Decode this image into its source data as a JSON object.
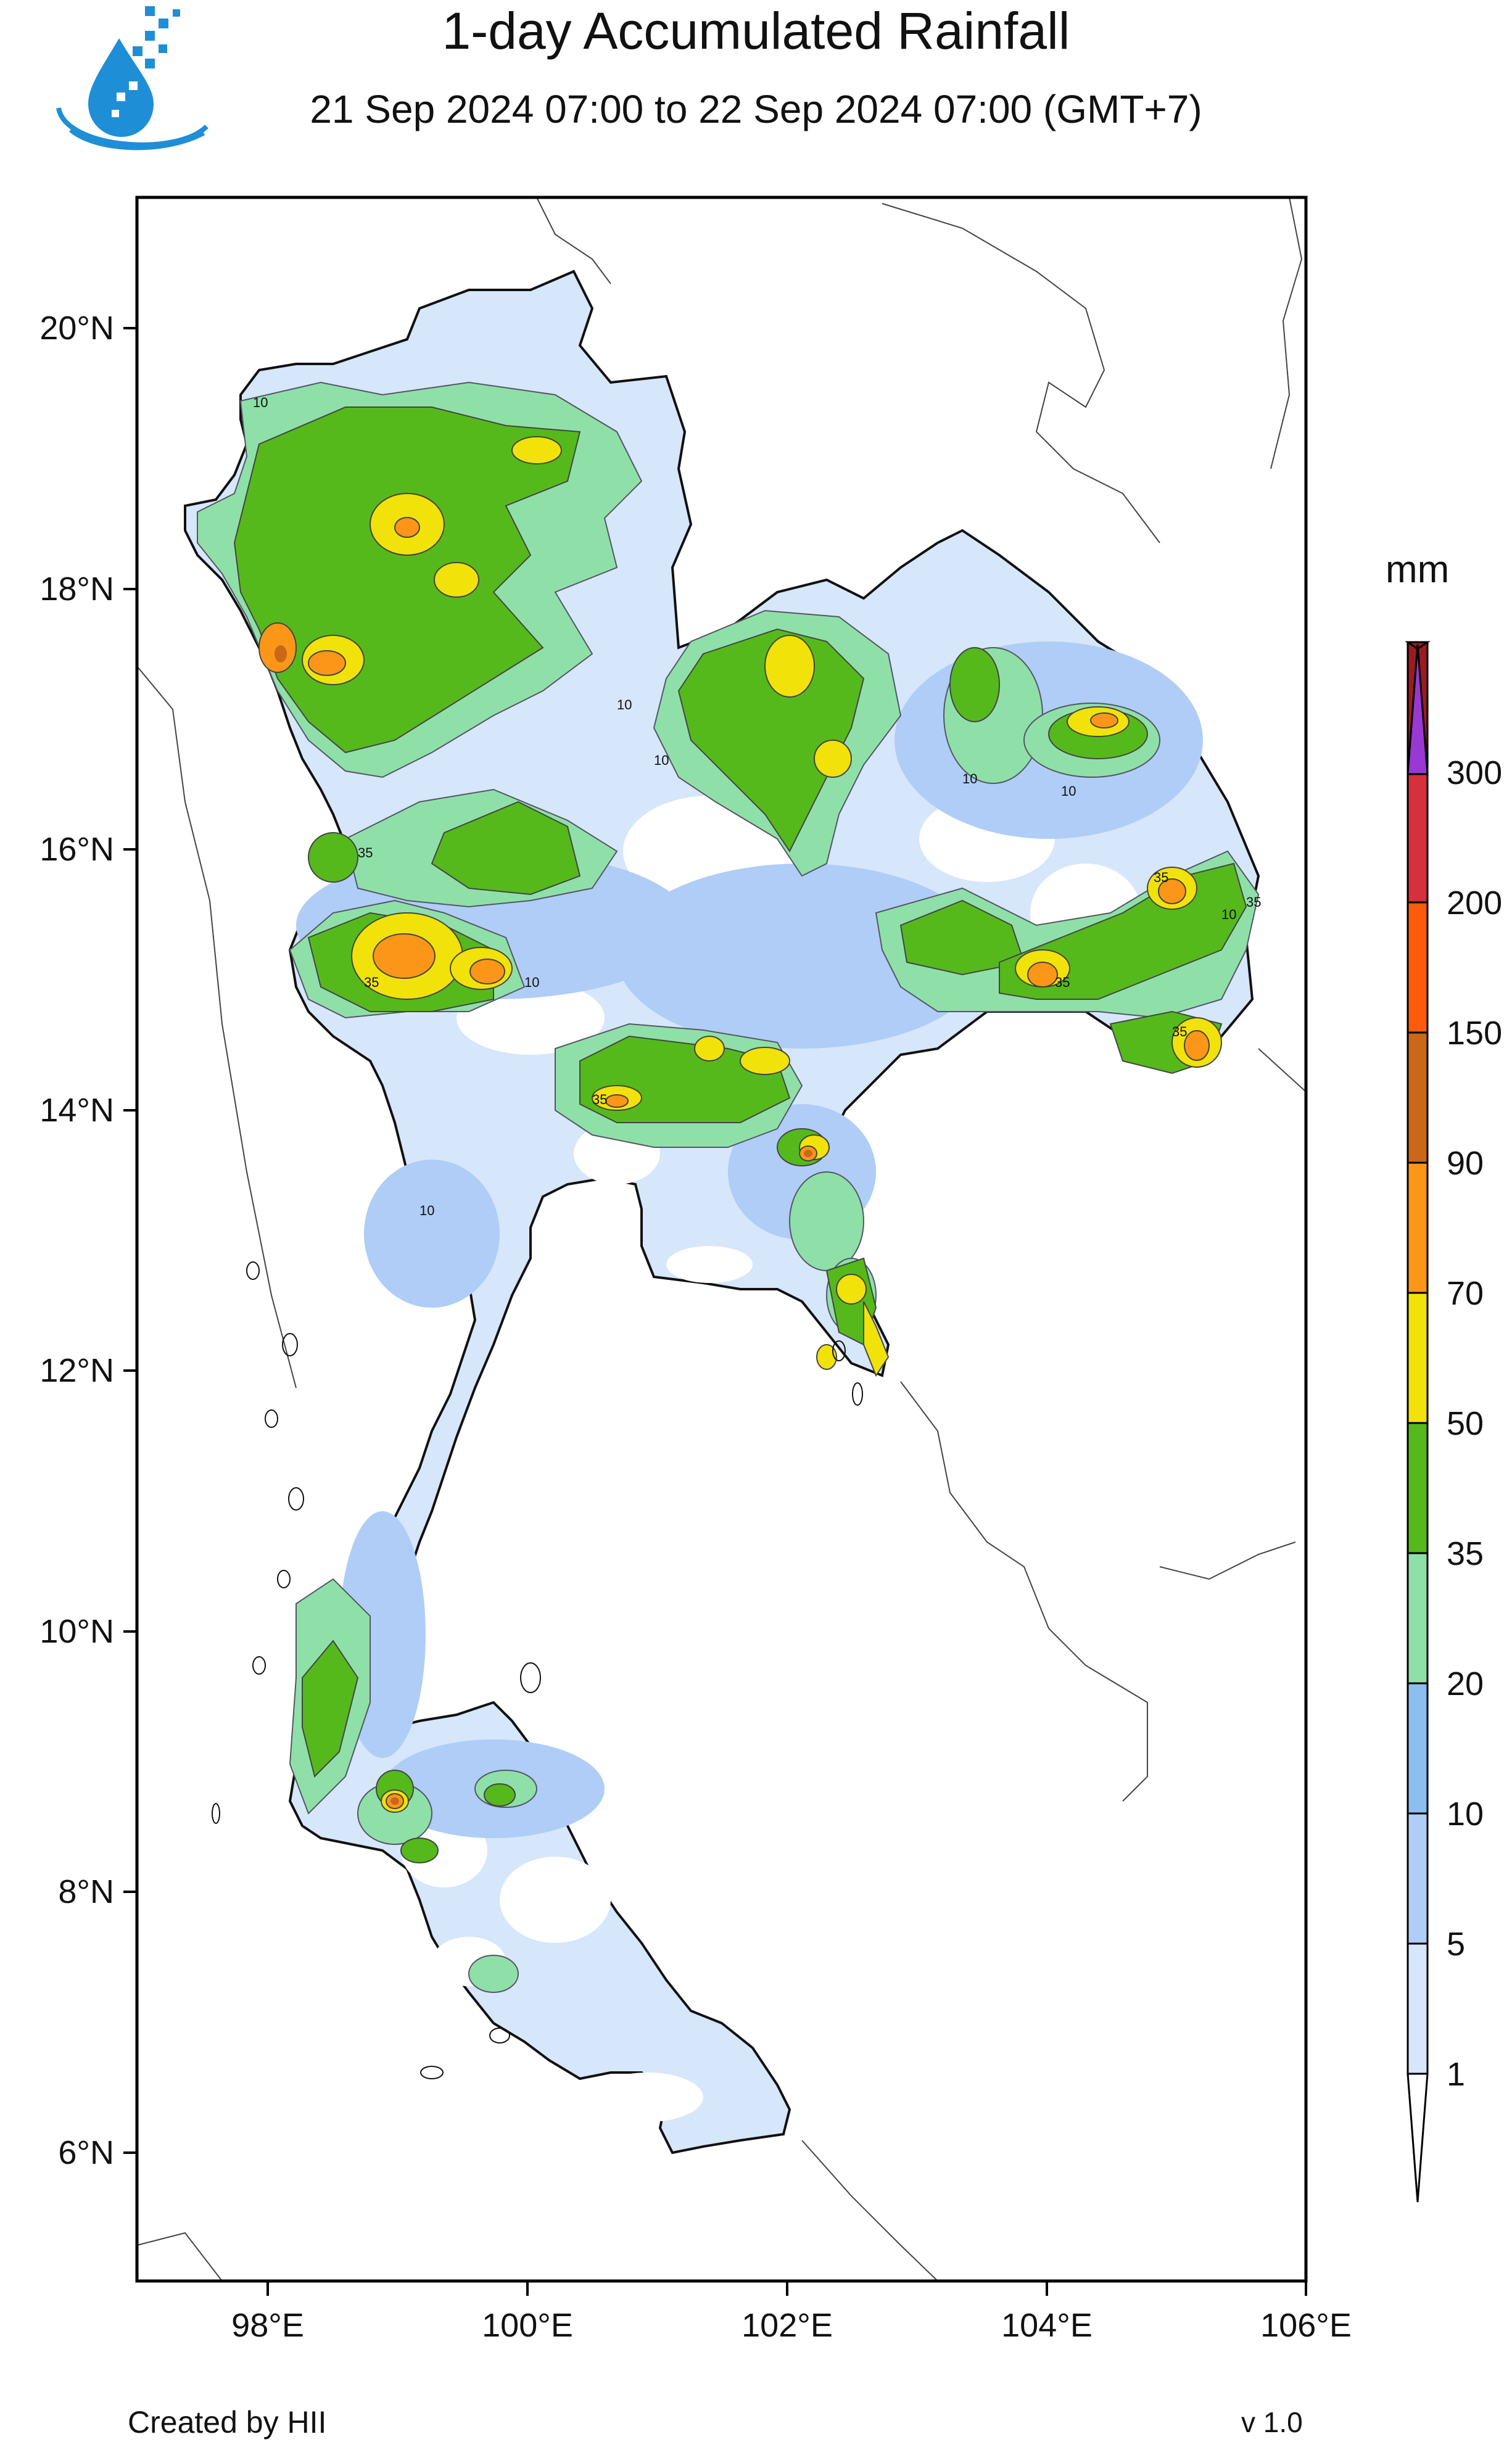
{
  "header": {
    "title": "1-day Accumulated Rainfall",
    "subtitle": "21 Sep 2024 07:00 to 22 Sep 2024 07:00 (GMT+7)"
  },
  "map": {
    "lat_labels": [
      "20°N",
      "18°N",
      "16°N",
      "14°N",
      "12°N",
      "10°N",
      "8°N",
      "6°N"
    ],
    "lon_labels": [
      "98°E",
      "100°E",
      "102°E",
      "104°E",
      "106°E"
    ]
  },
  "legend": {
    "unit": "mm",
    "levels": [
      "1",
      "5",
      "10",
      "20",
      "35",
      "50",
      "70",
      "90",
      "150",
      "200",
      "300"
    ],
    "colors": [
      "#d6e6fb",
      "#afcdf6",
      "#8cbef0",
      "#8fe0a8",
      "#55b91c",
      "#f1e20a",
      "#fb9619",
      "#c86818",
      "#fc5c0c",
      "#d5303b",
      "#9a1c22",
      "#9a38d3"
    ]
  },
  "contour_labels": [
    "10",
    "35"
  ],
  "footer": {
    "credit": "Created by HII",
    "version": "v 1.0"
  }
}
